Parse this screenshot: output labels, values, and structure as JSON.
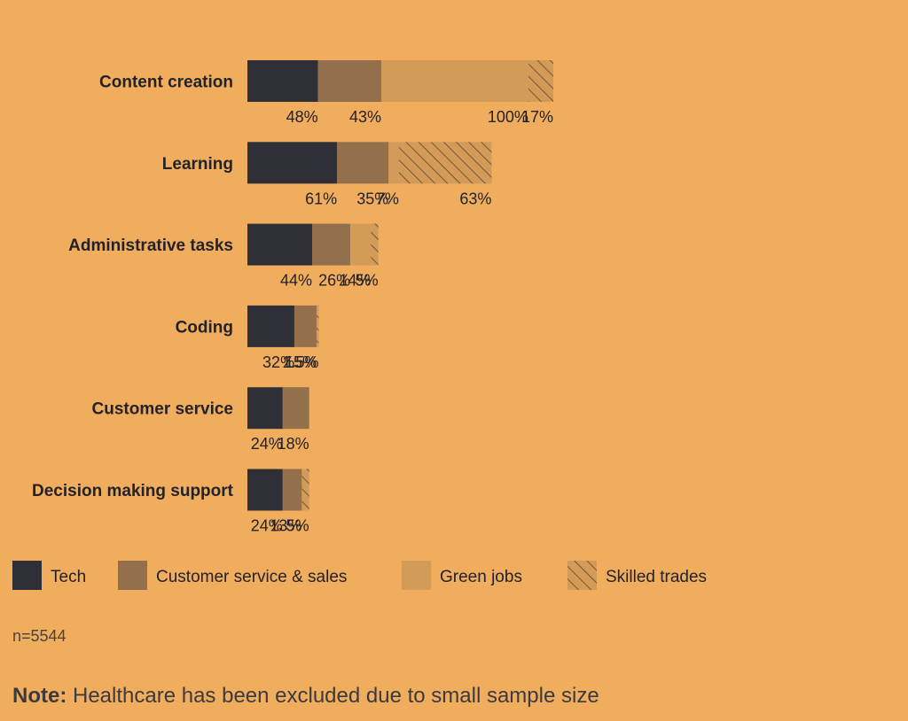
{
  "chart_data": {
    "type": "bar",
    "orientation": "horizontal",
    "stacked": true,
    "categories": [
      "Content creation",
      "Learning",
      "Administrative tasks",
      "Coding",
      "Customer service",
      "Decision making support"
    ],
    "series": [
      {
        "name": "Tech",
        "color": "#2F2F37",
        "pattern": "solid",
        "values": [
          48,
          61,
          44,
          32,
          24,
          24
        ],
        "labels": [
          "48%",
          "61%",
          "44%",
          "32%",
          "24%",
          "24%"
        ]
      },
      {
        "name": "Customer service & sales",
        "color": "#93704B",
        "pattern": "solid",
        "values": [
          43,
          35,
          26,
          15,
          18,
          13
        ],
        "labels": [
          "43%",
          "35%",
          "26%",
          "15%",
          "18%",
          "13%"
        ]
      },
      {
        "name": "Green jobs",
        "color": "#D39B58",
        "pattern": "solid",
        "values": [
          100,
          7,
          14,
          0,
          0,
          0
        ],
        "labels": [
          "100%",
          "7%",
          "14%",
          "",
          "",
          ""
        ]
      },
      {
        "name": "Skilled trades",
        "color": "#D39B58",
        "pattern": "hatched",
        "values": [
          17,
          63,
          5,
          1.5,
          0,
          5
        ],
        "labels": [
          "17%",
          "63%",
          "5%",
          "1.5%",
          "",
          "5%"
        ]
      }
    ],
    "legend_position": "bottom-left",
    "grid": false
  },
  "footer": {
    "sample_size": "n=5544",
    "note_label": "Note:",
    "note_text": " Healthcare has been excluded due to small sample size"
  }
}
